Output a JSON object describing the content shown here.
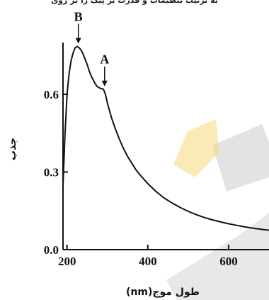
{
  "chart_data": {
    "type": "line",
    "title": "",
    "xlabel": "(nm)طول موج",
    "ylabel": "جذب",
    "xlim": [
      190,
      700
    ],
    "ylim": [
      0,
      0.8
    ],
    "x_ticks": [
      200,
      400,
      600
    ],
    "x_tick_labels": [
      "200",
      "400",
      "600"
    ],
    "y_ticks": [
      0.0,
      0.3,
      0.6
    ],
    "y_tick_labels": [
      "0.0",
      "0.3",
      "0.6"
    ],
    "series": [
      {
        "x": [
          190,
          195,
          200,
          205,
          210,
          215,
          220,
          225,
          230,
          235,
          240,
          245,
          250,
          255,
          260,
          265,
          270,
          275,
          280,
          285,
          290,
          295,
          300,
          310,
          320,
          330,
          340,
          350,
          360,
          370,
          380,
          400,
          420,
          440,
          460,
          480,
          500,
          520,
          540,
          560,
          580,
          600,
          620,
          640,
          660,
          680,
          700
        ],
        "y": [
          0.25,
          0.45,
          0.6,
          0.68,
          0.73,
          0.76,
          0.78,
          0.785,
          0.78,
          0.77,
          0.755,
          0.735,
          0.715,
          0.69,
          0.67,
          0.655,
          0.64,
          0.63,
          0.625,
          0.622,
          0.62,
          0.6,
          0.565,
          0.51,
          0.465,
          0.425,
          0.39,
          0.36,
          0.335,
          0.31,
          0.29,
          0.255,
          0.225,
          0.2,
          0.18,
          0.163,
          0.148,
          0.135,
          0.124,
          0.115,
          0.107,
          0.1,
          0.094,
          0.088,
          0.083,
          0.079,
          0.075
        ]
      }
    ],
    "annotations": [
      {
        "text": "B",
        "x": 228,
        "y": 0.785
      },
      {
        "text": "A",
        "x": 293,
        "y": 0.62
      }
    ],
    "grid": false
  }
}
